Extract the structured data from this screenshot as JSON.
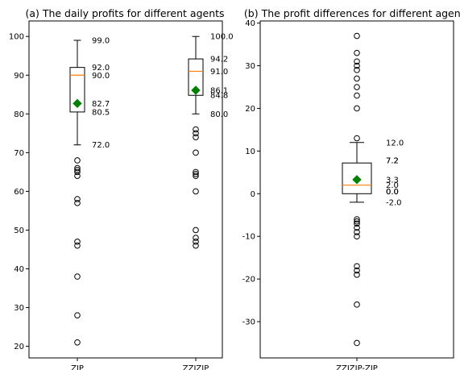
{
  "chart_data": [
    {
      "type": "boxplot",
      "title": "(a) The daily profits for different agents",
      "xlabel": "",
      "ylabel": "",
      "ylim": [
        17,
        104
      ],
      "yticks": [
        20,
        30,
        40,
        50,
        60,
        70,
        80,
        90,
        100
      ],
      "categories": [
        "ZIP",
        "ZZIZIP"
      ],
      "boxes": [
        {
          "name": "ZIP",
          "whisker_low": 72.0,
          "q1": 80.5,
          "median": 90.0,
          "q3": 92.0,
          "whisker_high": 99.0,
          "mean": 82.7,
          "outliers": [
            68,
            66,
            65.5,
            65,
            64,
            58,
            57,
            47,
            46,
            38,
            28,
            21
          ],
          "labels": [
            {
              "value": 99.0,
              "text": "99.0"
            },
            {
              "value": 92.0,
              "text": "92.0"
            },
            {
              "value": 90.0,
              "text": "90.0"
            },
            {
              "value": 82.7,
              "text": "82.7"
            },
            {
              "value": 80.5,
              "text": "80.5"
            },
            {
              "value": 72.0,
              "text": "72.0"
            }
          ]
        },
        {
          "name": "ZZIZIP",
          "whisker_low": 80.0,
          "q1": 84.8,
          "median": 91.0,
          "q3": 94.2,
          "whisker_high": 100.0,
          "mean": 86.1,
          "outliers": [
            76,
            75,
            74,
            70,
            65,
            64.5,
            64,
            60,
            50,
            48,
            47,
            46
          ],
          "labels": [
            {
              "value": 100.0,
              "text": "100.0"
            },
            {
              "value": 94.2,
              "text": "94.2"
            },
            {
              "value": 91.0,
              "text": "91.0"
            },
            {
              "value": 86.1,
              "text": "86.1"
            },
            {
              "value": 84.8,
              "text": "84.8"
            },
            {
              "value": 80.0,
              "text": "80.0"
            }
          ]
        }
      ]
    },
    {
      "type": "boxplot",
      "title": "(b) The profit differences for different agents",
      "xlabel": "",
      "ylabel": "",
      "ylim": [
        -38.5,
        40.5
      ],
      "yticks": [
        -30,
        -20,
        -10,
        0,
        10,
        20,
        30,
        40
      ],
      "categories": [
        "ZZIZIP-ZIP"
      ],
      "boxes": [
        {
          "name": "ZZIZIP-ZIP",
          "whisker_low": -2.0,
          "q1": 0.0,
          "median": 2.0,
          "q3": 7.2,
          "whisker_high": 12.0,
          "mean": 3.3,
          "outliers": [
            37,
            33,
            31,
            30,
            29,
            27,
            25,
            23,
            20,
            13,
            -6,
            -6.5,
            -7,
            -8,
            -9,
            -10,
            -17,
            -18,
            -19,
            -26,
            -35
          ],
          "labels": [
            {
              "value": 12.0,
              "text": "12.0"
            },
            {
              "value": 7.2,
              "text": "7.2"
            },
            {
              "value": 7.2,
              "text": "7.2"
            },
            {
              "value": 3.3,
              "text": "3.3"
            },
            {
              "value": 2.0,
              "text": "2.0"
            },
            {
              "value": 0.0,
              "text": "0.0"
            },
            {
              "value": 0.0,
              "text": "0.0"
            },
            {
              "value": -2.0,
              "text": "-2.0"
            }
          ]
        }
      ]
    }
  ],
  "colors": {
    "median": "#ff7f0e",
    "mean": "#008000",
    "axes": "#000000"
  }
}
